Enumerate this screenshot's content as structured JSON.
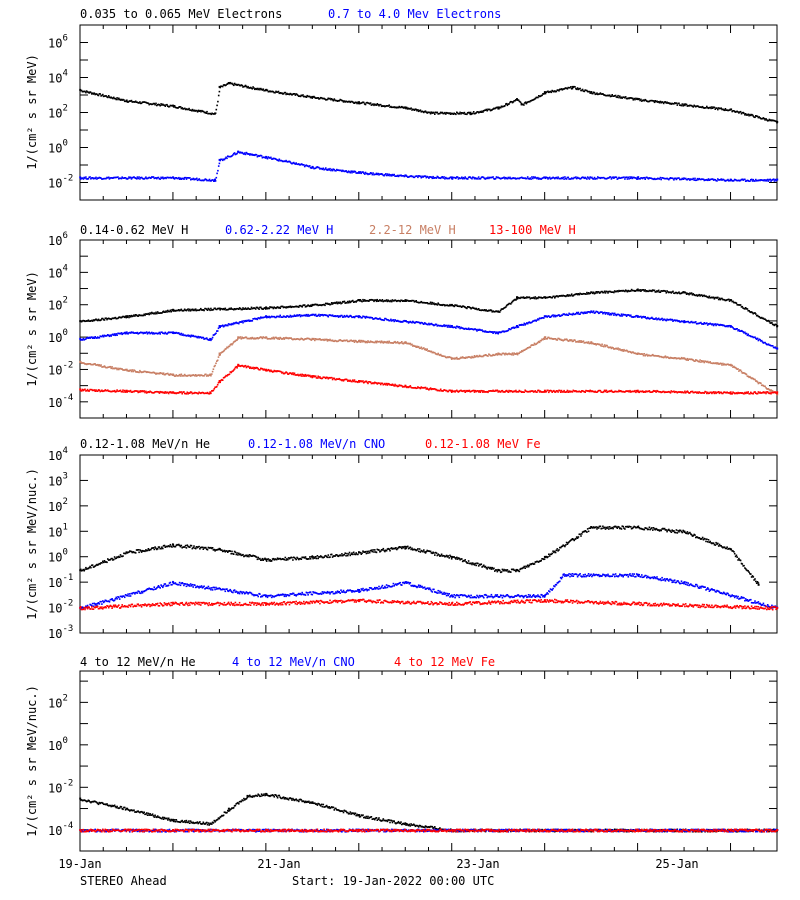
{
  "footer": {
    "left": "STEREO Ahead",
    "center": "Start: 19-Jan-2022 00:00 UTC"
  },
  "x_ticks": [
    "19-Jan",
    "21-Jan",
    "23-Jan",
    "25-Jan"
  ],
  "chart_data": [
    {
      "type": "scatter",
      "title": "",
      "xlabel": "",
      "ylabel": "1/(cm² s sr MeV)",
      "yscale": "log",
      "ylim": [
        0.001,
        10000000
      ],
      "xlim_days": [
        0,
        7.5
      ],
      "y_ticks": [
        {
          "base": "10",
          "exp": "6"
        },
        {
          "base": "10",
          "exp": "4"
        },
        {
          "base": "10",
          "exp": "2"
        },
        {
          "base": "10",
          "exp": "0"
        },
        {
          "base": "10",
          "exp": "-2"
        }
      ],
      "legend": [
        "0.035 to 0.065 MeV Electrons",
        "0.7 to 4.0 Mev Electrons"
      ],
      "series": [
        {
          "name": "0.035 to 0.065 MeV Electrons",
          "color": "#000000",
          "x": [
            0,
            0.5,
            1.0,
            1.45,
            1.5,
            1.6,
            2.0,
            2.5,
            3.0,
            3.5,
            3.8,
            4.2,
            4.5,
            4.7,
            4.75,
            5.0,
            5.3,
            5.5,
            6.0,
            6.5,
            7.0,
            7.5
          ],
          "y": [
            2000,
            500,
            250,
            90,
            3000,
            5000,
            2000,
            800,
            400,
            200,
            100,
            100,
            200,
            600,
            300,
            1500,
            3000,
            1500,
            600,
            300,
            150,
            30
          ]
        },
        {
          "name": "0.7 to 4.0 Mev Electrons",
          "color": "#0000ff",
          "x": [
            0,
            1.0,
            1.45,
            1.5,
            1.7,
            2.0,
            2.5,
            3.0,
            3.5,
            4.0,
            5.0,
            6.0,
            7.0,
            7.5
          ],
          "y": [
            0.02,
            0.02,
            0.015,
            0.2,
            0.6,
            0.3,
            0.08,
            0.04,
            0.025,
            0.02,
            0.02,
            0.02,
            0.015,
            0.015
          ]
        }
      ]
    },
    {
      "type": "scatter",
      "title": "",
      "xlabel": "",
      "ylabel": "1/(cm² s sr MeV)",
      "yscale": "log",
      "ylim": [
        1e-05,
        1000000
      ],
      "xlim_days": [
        0,
        7.5
      ],
      "y_ticks": [
        {
          "base": "10",
          "exp": "6"
        },
        {
          "base": "10",
          "exp": "4"
        },
        {
          "base": "10",
          "exp": "2"
        },
        {
          "base": "10",
          "exp": "0"
        },
        {
          "base": "10",
          "exp": "-2"
        },
        {
          "base": "10",
          "exp": "-4"
        }
      ],
      "legend": [
        "0.14-0.62 MeV H",
        "0.62-2.22 MeV H",
        "2.2-12 MeV H",
        "13-100 MeV H"
      ],
      "series": [
        {
          "name": "0.14-0.62 MeV H",
          "color": "#000000",
          "x": [
            0,
            0.5,
            1.0,
            1.5,
            2.0,
            2.5,
            3.0,
            3.5,
            4.0,
            4.5,
            4.7,
            5.0,
            5.5,
            6.0,
            6.5,
            7.0,
            7.5
          ],
          "y": [
            10,
            20,
            50,
            60,
            70,
            100,
            200,
            200,
            100,
            40,
            300,
            300,
            600,
            900,
            600,
            200,
            5
          ]
        },
        {
          "name": "0.62-2.22 MeV H",
          "color": "#0000ff",
          "x": [
            0,
            0.5,
            1.0,
            1.4,
            1.5,
            2.0,
            2.5,
            3.0,
            3.5,
            4.0,
            4.5,
            4.7,
            5.0,
            5.5,
            6.0,
            6.5,
            7.0,
            7.5
          ],
          "y": [
            0.8,
            2,
            2,
            0.8,
            5,
            20,
            25,
            20,
            10,
            5,
            2,
            5,
            20,
            40,
            20,
            10,
            5,
            0.2
          ]
        },
        {
          "name": "2.2-12 MeV H",
          "color": "#c87f64",
          "x": [
            0,
            0.5,
            1.0,
            1.4,
            1.5,
            1.7,
            2.0,
            2.5,
            3.0,
            3.5,
            4.0,
            4.5,
            4.7,
            5.0,
            5.5,
            6.0,
            6.5,
            7.0,
            7.5
          ],
          "y": [
            0.03,
            0.01,
            0.005,
            0.005,
            0.1,
            1,
            1,
            0.8,
            0.6,
            0.5,
            0.05,
            0.1,
            0.1,
            1,
            0.5,
            0.1,
            0.05,
            0.02,
            0.0003
          ]
        },
        {
          "name": "13-100 MeV H",
          "color": "#ff0000",
          "x": [
            0,
            0.5,
            1.0,
            1.4,
            1.5,
            1.7,
            2.0,
            2.5,
            3.0,
            3.5,
            4.0,
            5.0,
            6.0,
            7.0,
            7.5
          ],
          "y": [
            0.0006,
            0.0005,
            0.0004,
            0.0004,
            0.002,
            0.02,
            0.01,
            0.004,
            0.002,
            0.001,
            0.0005,
            0.0005,
            0.0005,
            0.0004,
            0.0004
          ]
        }
      ]
    },
    {
      "type": "scatter",
      "title": "",
      "xlabel": "",
      "ylabel": "1/(cm² s sr MeV/nuc.)",
      "yscale": "log",
      "ylim": [
        0.001,
        10000
      ],
      "xlim_days": [
        0,
        7.5
      ],
      "y_ticks": [
        {
          "base": "10",
          "exp": "4"
        },
        {
          "base": "10",
          "exp": "3"
        },
        {
          "base": "10",
          "exp": "2"
        },
        {
          "base": "10",
          "exp": "1"
        },
        {
          "base": "10",
          "exp": "0"
        },
        {
          "base": "10",
          "exp": "-1"
        },
        {
          "base": "10",
          "exp": "-2"
        },
        {
          "base": "10",
          "exp": "-3"
        }
      ],
      "legend": [
        "0.12-1.08 MeV/n He",
        "0.12-1.08 MeV/n CNO",
        "0.12-1.08 MeV Fe"
      ],
      "series": [
        {
          "name": "0.12-1.08 MeV/n He",
          "color": "#000000",
          "x": [
            0,
            0.5,
            1.0,
            1.5,
            2.0,
            2.5,
            3.0,
            3.5,
            4.0,
            4.5,
            4.7,
            5.0,
            5.5,
            6.0,
            6.5,
            7.0,
            7.3
          ],
          "y": [
            0.3,
            1.5,
            3,
            2,
            0.8,
            1,
            1.5,
            2.5,
            1,
            0.3,
            0.3,
            1,
            15,
            15,
            10,
            2,
            0.08
          ]
        },
        {
          "name": "0.12-1.08 MeV/n CNO",
          "color": "#0000ff",
          "x": [
            0,
            1.0,
            2.0,
            3.0,
            3.5,
            4.0,
            5.0,
            5.2,
            6.0,
            6.5,
            7.5
          ],
          "y": [
            0.01,
            0.1,
            0.03,
            0.05,
            0.1,
            0.03,
            0.03,
            0.2,
            0.2,
            0.1,
            0.01
          ]
        },
        {
          "name": "0.12-1.08 MeV Fe",
          "color": "#ff0000",
          "x": [
            0,
            1.0,
            2.0,
            3.0,
            4.0,
            5.0,
            6.0,
            7.5
          ],
          "y": [
            0.01,
            0.015,
            0.015,
            0.02,
            0.015,
            0.02,
            0.015,
            0.01
          ]
        }
      ]
    },
    {
      "type": "scatter",
      "title": "",
      "xlabel": "",
      "ylabel": "1/(cm² s sr MeV/nuc.)",
      "yscale": "log",
      "ylim": [
        1e-05,
        3000
      ],
      "xlim_days": [
        0,
        7.5
      ],
      "y_ticks": [
        {
          "base": "10",
          "exp": "2"
        },
        {
          "base": "10",
          "exp": "0"
        },
        {
          "base": "10",
          "exp": "-2"
        },
        {
          "base": "10",
          "exp": "-4"
        }
      ],
      "legend": [
        "4 to 12 MeV/n He",
        "4 to 12 MeV/n CNO",
        "4 to 12 MeV Fe"
      ],
      "series": [
        {
          "name": "4 to 12 MeV/n He",
          "color": "#000000",
          "x": [
            0,
            0.5,
            1.0,
            1.4,
            1.6,
            1.8,
            2.0,
            2.5,
            3.0,
            3.5,
            4.0,
            5.0,
            6.0,
            7.0,
            7.5
          ],
          "y": [
            0.003,
            0.001,
            0.0003,
            0.0002,
            0.001,
            0.004,
            0.005,
            0.002,
            0.0005,
            0.0002,
            0.0001,
            0.0001,
            0.0001,
            0.0001,
            0.0001
          ]
        },
        {
          "name": "4 to 12 MeV/n CNO",
          "color": "#0000ff",
          "x": [
            0,
            1.0,
            2.0,
            3.0,
            4.0,
            5.0,
            6.0,
            7.5
          ],
          "y": [
            0.0001,
            0.0001,
            0.0001,
            0.0001,
            0.0001,
            0.0001,
            0.0001,
            0.0001
          ]
        },
        {
          "name": "4 to 12 MeV Fe",
          "color": "#ff0000",
          "x": [
            0,
            1.0,
            2.0,
            3.0,
            4.0,
            5.0,
            6.0,
            7.5
          ],
          "y": [
            0.0001,
            0.0001,
            0.0001,
            0.0001,
            0.0001,
            0.0001,
            0.0001,
            0.0001
          ]
        }
      ]
    }
  ]
}
